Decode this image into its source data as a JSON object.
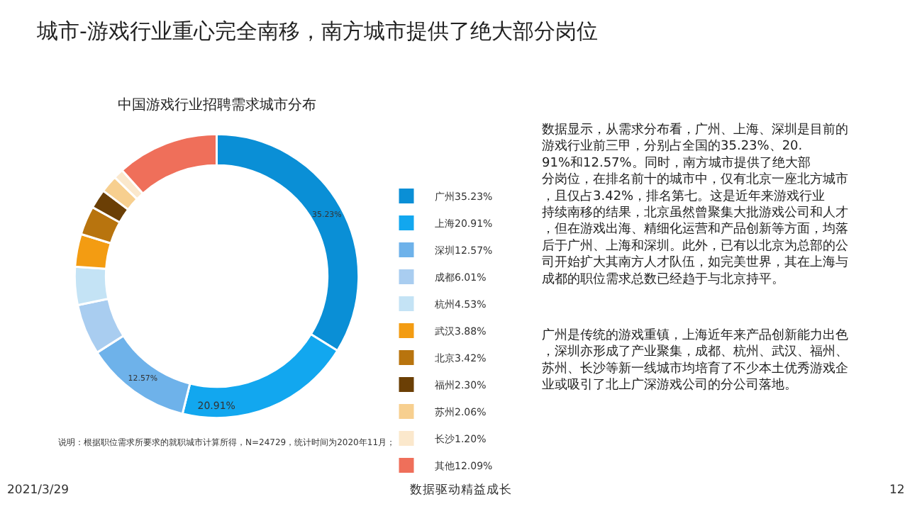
{
  "chart_data": {
    "type": "donut",
    "title": "城市-游戏行业重心完全南移，南方城市提供了绝大部分岗位",
    "subtitle": "中国游戏行业招聘需求城市分布",
    "categories": [
      "广州35.23%",
      "上海20.91%",
      "深圳12.57%",
      "成都6.01%",
      "杭州4.53%",
      "武汉3.88%",
      "北京3.42%",
      "福州2.30%",
      "苏州2.06%",
      "长沙1.20%",
      "其他12.09%"
    ],
    "values": [
      35.23,
      20.91,
      12.57,
      6.01,
      4.53,
      3.88,
      3.42,
      2.3,
      2.06,
      1.2,
      12.09
    ],
    "colors": [
      "#0a8fd6",
      "#12a7ef",
      "#6eb2ea",
      "#a9cdf0",
      "#c4e3f5",
      "#f39c12",
      "#b8740e",
      "#6b3f05",
      "#f7cf8f",
      "#fbe8cc",
      "#ef6f5a"
    ],
    "value_labels": [
      "35.23%",
      "20.91%",
      "12.57%",
      null,
      null,
      null,
      null,
      null,
      null,
      null,
      null
    ],
    "legend": "right",
    "annotations": [
      "数据显示，从需求分布看，广州、上海、深圳是目前的游戏行业前三甲，分别占全国的35.23%、20.91%和12.57%。同时，南方城市提供了绝大部分岗位，在排名前十的城市中，仅有北京一座北方城市，且仅占3.42%，排名第七。这是近年来游戏行业持续南移的结果，北京虽然曾聚集大批游戏公司和人才，但在游戏出海、精细化运营和产品创新等方面，均落后于广州、上海和深圳。此外，已有以北京为总部的公司开始扩大其南方人才队伍，如完美世界，其在上海与成都的职位需求总数已经趋于与北京持平。",
      "广州是传统的游戏重镇，上海近年来产品创新能力出色，深圳亦形成了产业聚集，成都、杭州、武汉、福州、苏州、长沙等新一线城市均培育了不少本土优秀游戏企业或吸引了北上广深游戏公司的分公司落地。",
      "说明：根据职位需求所要求的就职城市计算所得，N=24729，统计时间为2020年11月；",
      "2021/3/29",
      "数据驱动精益成长",
      "12"
    ]
  }
}
